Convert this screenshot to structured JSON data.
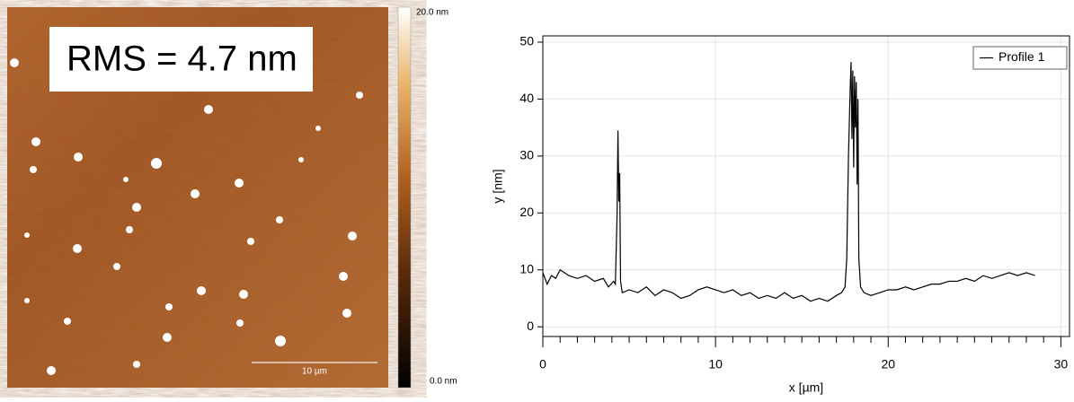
{
  "image": {
    "rms_label": "RMS = 4.7 nm",
    "scale_bar_label": "10 µm",
    "colorbar_max_label": "20.0 nm",
    "colorbar_min_label": "0.0 nm"
  },
  "chart_data": {
    "type": "line",
    "xlabel": "x [µm]",
    "ylabel": "y [nm]",
    "x": [
      0,
      0.25,
      0.5,
      0.75,
      1,
      1.5,
      2,
      2.5,
      3,
      3.5,
      3.8,
      4.1,
      4.2,
      4.3,
      4.35,
      4.4,
      4.45,
      4.5,
      4.6,
      5,
      5.5,
      6,
      6.5,
      7,
      7.5,
      8,
      8.5,
      9,
      9.5,
      10,
      10.5,
      11,
      11.5,
      12,
      12.5,
      13,
      13.5,
      14,
      14.5,
      15,
      15.5,
      16,
      16.5,
      17,
      17.3,
      17.5,
      17.6,
      17.7,
      17.8,
      17.85,
      17.9,
      17.95,
      18,
      18.05,
      18.1,
      18.15,
      18.2,
      18.25,
      18.3,
      18.4,
      18.6,
      19,
      19.5,
      20,
      20.5,
      21,
      21.5,
      22,
      22.5,
      23,
      23.5,
      24,
      24.5,
      25,
      25.5,
      26,
      26.5,
      27,
      27.5,
      28,
      28.5
    ],
    "series": [
      {
        "name": "Profile 1",
        "color": "#000000",
        "values": [
          9.5,
          7.5,
          9,
          8.5,
          10,
          9,
          8.5,
          9,
          8,
          8.5,
          7,
          8,
          7.5,
          20,
          34.5,
          22,
          27,
          8,
          6,
          6.5,
          6,
          7,
          5.5,
          6.5,
          6,
          5,
          5.5,
          6.5,
          7,
          6.5,
          6,
          6.5,
          5.5,
          6,
          5,
          5.5,
          5,
          6,
          5,
          5.5,
          4.5,
          5,
          4.5,
          5.5,
          6,
          7,
          12,
          30,
          42,
          46.5,
          33,
          45,
          28,
          44,
          35,
          43,
          25,
          40,
          12,
          7,
          6,
          5.5,
          6,
          6.5,
          6.5,
          7,
          6.5,
          7,
          7.5,
          7.5,
          8,
          8,
          8.5,
          8,
          9,
          8.5,
          9,
          9.5,
          9,
          9.5,
          9
        ]
      }
    ],
    "xlim": [
      0,
      30.5
    ],
    "ylim": [
      -1.7,
      51.1
    ],
    "xticks": [
      0,
      10,
      20,
      30
    ],
    "xminorticks": [
      1,
      2,
      3,
      4,
      5,
      6,
      7,
      8,
      9,
      11,
      12,
      13,
      14,
      15,
      16,
      17,
      18,
      19,
      21,
      22,
      23,
      24,
      25,
      26,
      27,
      28,
      29
    ],
    "yticks": [
      0,
      10,
      20,
      30,
      40,
      50
    ],
    "grid": true,
    "legend": "upper right"
  }
}
